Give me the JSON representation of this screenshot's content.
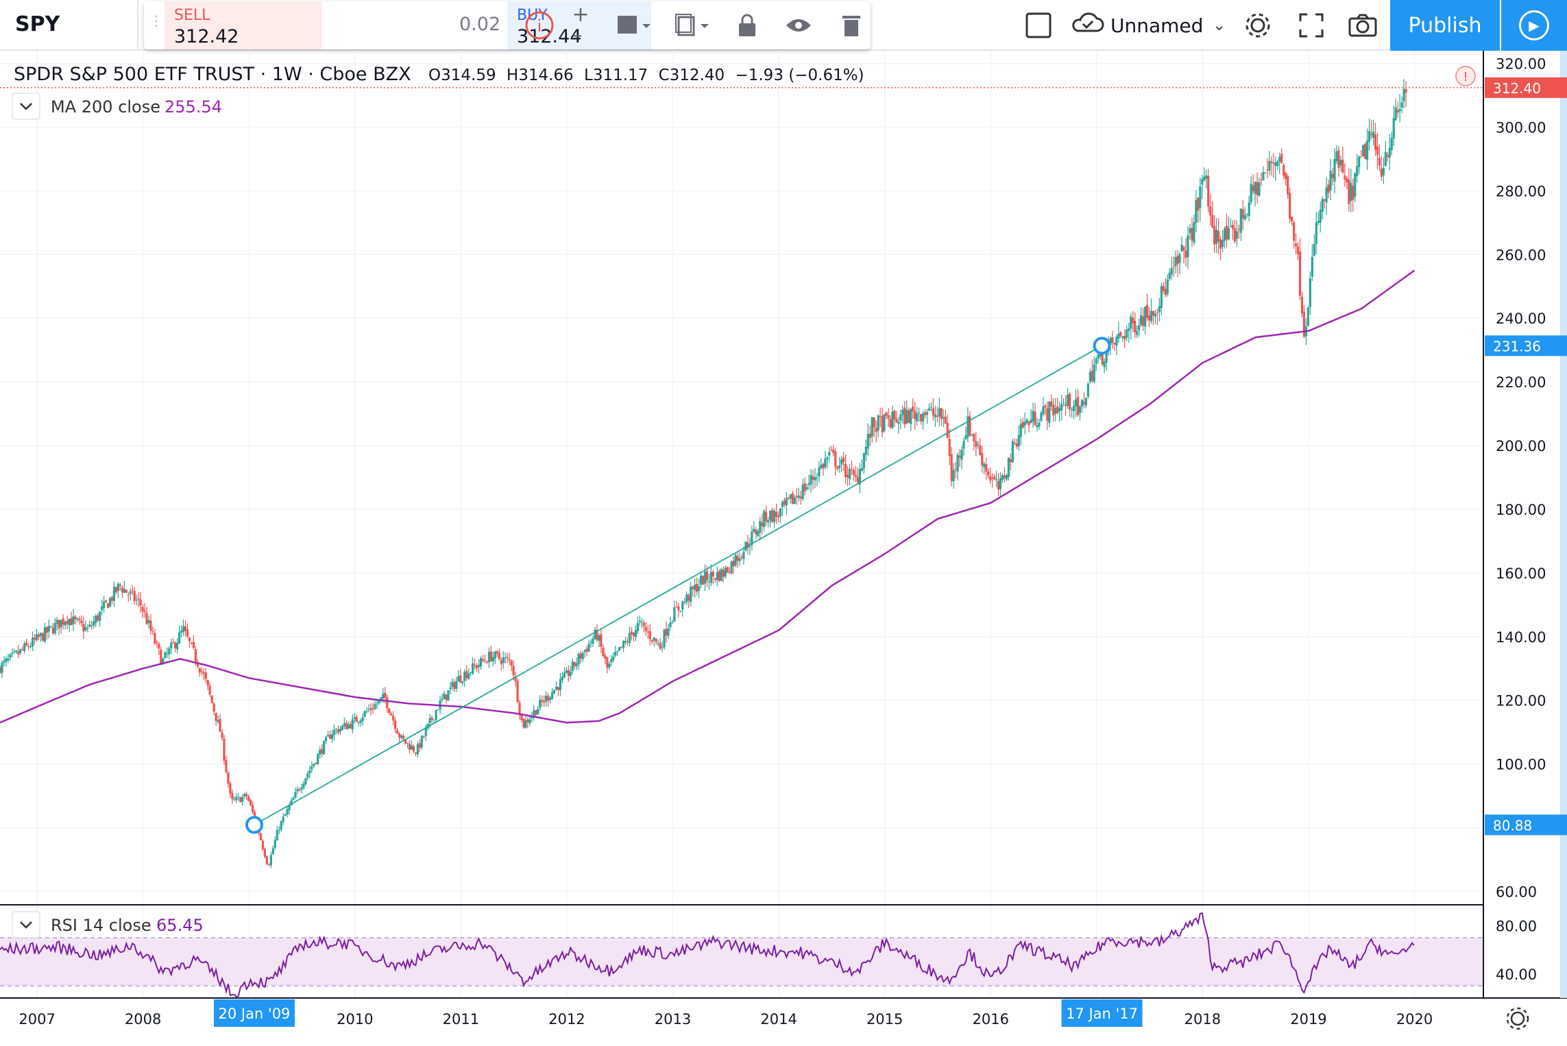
{
  "header": {
    "symbol": "SPY",
    "sell_label": "SELL",
    "sell_price": "312.42",
    "spread": "0.02",
    "buy_label": "BUY",
    "buy_price": "312.44",
    "layout_name": "Unnamed",
    "publish_label": "Publish"
  },
  "legend": {
    "title": "SPDR S&P 500 ETF TRUST · 1W · Cboe BZX",
    "open": "O314.59",
    "high": "H314.66",
    "low": "L311.17",
    "close": "C312.40",
    "change": "−1.93 (−0.61%)",
    "ma_label": "MA 200 close",
    "ma_value": "255.54",
    "rsi_label": "RSI 14 close",
    "rsi_value": "65.45"
  },
  "colors": {
    "up": "#26a69a",
    "down": "#ef5350",
    "ma": "#9c27b0",
    "rsi": "#7b1fa2",
    "accent": "#2196f3"
  },
  "chart_data": [
    {
      "type": "candlestick",
      "title": "SPDR S&P 500 ETF TRUST",
      "interval": "1W",
      "exchange": "Cboe BZX",
      "x_ticks": [
        "2007",
        "2008",
        "2009",
        "2010",
        "2011",
        "2012",
        "2013",
        "2014",
        "2015",
        "2016",
        "2017",
        "2018",
        "2019",
        "2020"
      ],
      "y_ticks": [
        "60.00",
        "80.00",
        "100.00",
        "120.00",
        "140.00",
        "160.00",
        "180.00",
        "200.00",
        "220.00",
        "240.00",
        "260.00",
        "280.00",
        "300.00",
        "320.00"
      ],
      "ylim": [
        56,
        324
      ],
      "xlim": [
        2006.65,
        2020.65
      ],
      "last_price": "312.40",
      "price_path": [
        [
          2006.65,
          130
        ],
        [
          2007.3,
          146
        ],
        [
          2007.5,
          142
        ],
        [
          2007.8,
          156
        ],
        [
          2008.0,
          150
        ],
        [
          2008.2,
          132
        ],
        [
          2008.4,
          142
        ],
        [
          2008.6,
          127
        ],
        [
          2008.75,
          110
        ],
        [
          2008.85,
          88
        ],
        [
          2009.0,
          90
        ],
        [
          2009.1,
          80
        ],
        [
          2009.2,
          68
        ],
        [
          2009.3,
          80
        ],
        [
          2009.5,
          93
        ],
        [
          2009.8,
          110
        ],
        [
          2010.0,
          113
        ],
        [
          2010.3,
          121
        ],
        [
          2010.45,
          108
        ],
        [
          2010.6,
          104
        ],
        [
          2010.8,
          118
        ],
        [
          2011.0,
          127
        ],
        [
          2011.3,
          134
        ],
        [
          2011.5,
          132
        ],
        [
          2011.6,
          112
        ],
        [
          2011.75,
          118
        ],
        [
          2012.0,
          127
        ],
        [
          2012.3,
          141
        ],
        [
          2012.4,
          130
        ],
        [
          2012.7,
          144
        ],
        [
          2012.9,
          137
        ],
        [
          2013.0,
          146
        ],
        [
          2013.3,
          158
        ],
        [
          2013.5,
          160
        ],
        [
          2013.7,
          168
        ],
        [
          2013.9,
          178
        ],
        [
          2014.0,
          178
        ],
        [
          2014.3,
          188
        ],
        [
          2014.5,
          197
        ],
        [
          2014.75,
          189
        ],
        [
          2014.9,
          206
        ],
        [
          2015.1,
          208
        ],
        [
          2015.4,
          211
        ],
        [
          2015.6,
          208
        ],
        [
          2015.65,
          189
        ],
        [
          2015.8,
          207
        ],
        [
          2016.0,
          191
        ],
        [
          2016.1,
          186
        ],
        [
          2016.3,
          206
        ],
        [
          2016.5,
          210
        ],
        [
          2016.8,
          214
        ],
        [
          2016.85,
          209
        ],
        [
          2017.0,
          226
        ],
        [
          2017.3,
          236
        ],
        [
          2017.6,
          245
        ],
        [
          2017.9,
          265
        ],
        [
          2018.05,
          287
        ],
        [
          2018.1,
          266
        ],
        [
          2018.3,
          265
        ],
        [
          2018.5,
          280
        ],
        [
          2018.75,
          292
        ],
        [
          2018.9,
          264
        ],
        [
          2018.98,
          236
        ],
        [
          2019.1,
          270
        ],
        [
          2019.3,
          290
        ],
        [
          2019.4,
          277
        ],
        [
          2019.6,
          298
        ],
        [
          2019.7,
          287
        ],
        [
          2019.85,
          303
        ],
        [
          2019.95,
          314
        ],
        [
          2020.0,
          313
        ]
      ],
      "ma_path": [
        [
          2006.65,
          113
        ],
        [
          2007.0,
          118
        ],
        [
          2007.5,
          125
        ],
        [
          2008.0,
          130
        ],
        [
          2008.35,
          133
        ],
        [
          2008.6,
          131
        ],
        [
          2009.0,
          127
        ],
        [
          2009.5,
          124
        ],
        [
          2010.0,
          121
        ],
        [
          2010.5,
          119
        ],
        [
          2011.0,
          118
        ],
        [
          2011.5,
          116
        ],
        [
          2012.0,
          113
        ],
        [
          2012.3,
          113.5
        ],
        [
          2012.5,
          116
        ],
        [
          2013.0,
          126
        ],
        [
          2013.5,
          134
        ],
        [
          2014.0,
          142
        ],
        [
          2014.5,
          156
        ],
        [
          2015.0,
          166
        ],
        [
          2015.5,
          177
        ],
        [
          2016.0,
          182
        ],
        [
          2016.5,
          192
        ],
        [
          2017.0,
          202
        ],
        [
          2017.5,
          213
        ],
        [
          2018.0,
          226
        ],
        [
          2018.5,
          234
        ],
        [
          2019.0,
          236
        ],
        [
          2019.5,
          243
        ],
        [
          2020.0,
          255
        ]
      ],
      "trendline": [
        [
          2009.05,
          80.88
        ],
        [
          2017.05,
          231.36
        ]
      ],
      "trendline_labels": [
        "80.88",
        "231.36"
      ],
      "crosshair_dates": [
        "20 Jan '09",
        "17 Jan '17"
      ]
    },
    {
      "type": "line",
      "title": "RSI 14 close",
      "y_ticks": [
        "40.00",
        "80.00"
      ],
      "ylim": [
        20,
        95
      ],
      "band": [
        30,
        70
      ],
      "rsi_path": [
        [
          2006.65,
          60
        ],
        [
          2007.2,
          62
        ],
        [
          2007.6,
          55
        ],
        [
          2007.9,
          64
        ],
        [
          2008.2,
          42
        ],
        [
          2008.5,
          52
        ],
        [
          2008.7,
          38
        ],
        [
          2008.85,
          22
        ],
        [
          2009.0,
          34
        ],
        [
          2009.2,
          33
        ],
        [
          2009.5,
          65
        ],
        [
          2009.9,
          66
        ],
        [
          2010.4,
          46
        ],
        [
          2010.8,
          60
        ],
        [
          2011.2,
          66
        ],
        [
          2011.6,
          34
        ],
        [
          2012.0,
          58
        ],
        [
          2012.4,
          43
        ],
        [
          2012.7,
          60
        ],
        [
          2013.0,
          56
        ],
        [
          2013.4,
          67
        ],
        [
          2013.8,
          60
        ],
        [
          2014.2,
          58
        ],
        [
          2014.75,
          42
        ],
        [
          2015.0,
          66
        ],
        [
          2015.6,
          34
        ],
        [
          2015.8,
          58
        ],
        [
          2016.0,
          35
        ],
        [
          2016.3,
          64
        ],
        [
          2016.8,
          46
        ],
        [
          2017.1,
          68
        ],
        [
          2017.6,
          66
        ],
        [
          2018.0,
          87
        ],
        [
          2018.1,
          45
        ],
        [
          2018.4,
          50
        ],
        [
          2018.75,
          66
        ],
        [
          2018.95,
          28
        ],
        [
          2019.2,
          62
        ],
        [
          2019.4,
          45
        ],
        [
          2019.6,
          65
        ],
        [
          2019.8,
          54
        ],
        [
          2020.0,
          65.45
        ]
      ]
    }
  ]
}
